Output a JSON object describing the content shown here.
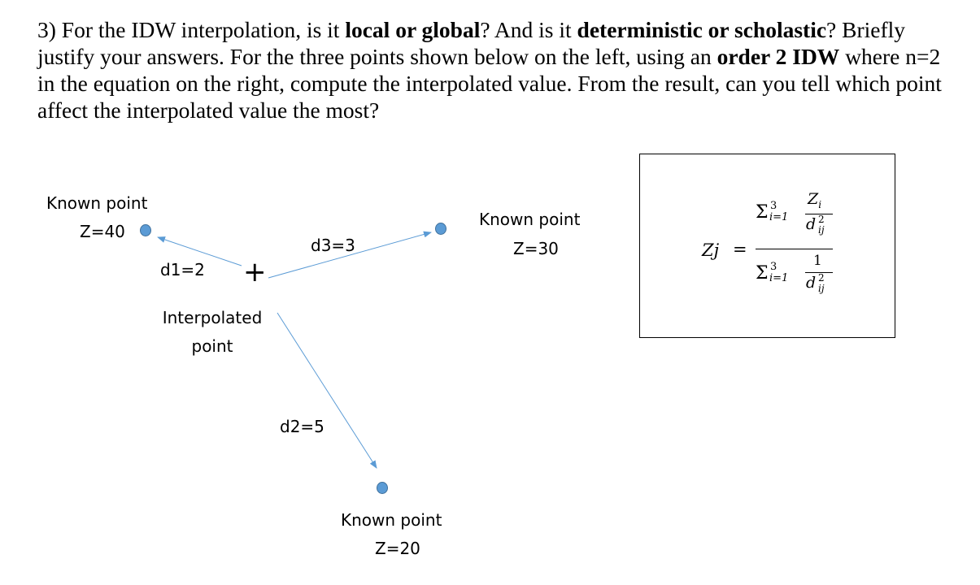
{
  "question": {
    "p1": "3) For the IDW interpolation, is it ",
    "b1": "local or global",
    "p2": "? And is it ",
    "b2": "deterministic or scholastic",
    "p3": "? Briefly justify your answers.  For the three points shown below on the left, using an ",
    "b3": "order 2 IDW",
    "p4": " where n=2 in the equation on the right, compute the interpolated value. From the result, can you tell which point affect the interpolated value the most?"
  },
  "diagram": {
    "point1": {
      "label": "Known point",
      "z": "Z=40"
    },
    "point2": {
      "label": "Known point",
      "z": "Z=30"
    },
    "point3": {
      "label": "Known point",
      "z": "Z=20"
    },
    "interpolated": {
      "line1": "Interpolated",
      "line2": "point",
      "marker": "+"
    },
    "d1": "d1=2",
    "d2": "d2=5",
    "d3": "d3=3",
    "colors": {
      "arrow": "#5b9bd5",
      "dot_fill": "#5b9bd5",
      "dot_stroke": "#41719c"
    }
  },
  "formula": {
    "lhs": "Zj",
    "eq": "=",
    "sigma": "Σ",
    "upper": "3",
    "lower": "i=1",
    "num_var": "Z",
    "num_sub": "i",
    "den_var": "d",
    "den_sup": "2",
    "den_sub": "ij",
    "one": "1"
  }
}
